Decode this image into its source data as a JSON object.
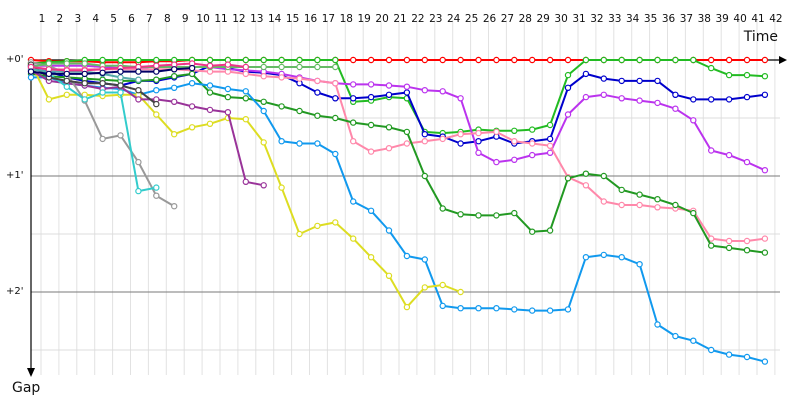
{
  "chart_data": {
    "type": "line",
    "xlabel": "Time",
    "ylabel": "Gap",
    "x": [
      1,
      2,
      3,
      4,
      5,
      6,
      7,
      8,
      9,
      10,
      11,
      12,
      13,
      14,
      15,
      16,
      17,
      18,
      19,
      20,
      21,
      22,
      23,
      24,
      25,
      26,
      27,
      28,
      29,
      30,
      31,
      32,
      33,
      34,
      35,
      36,
      37,
      38,
      39,
      40,
      41,
      42
    ],
    "x_tick_labels": [
      "1",
      "2",
      "3",
      "4",
      "5",
      "6",
      "7",
      "8",
      "9",
      "10",
      "11",
      "12",
      "13",
      "14",
      "15",
      "16",
      "17",
      "18",
      "19",
      "20",
      "21",
      "22",
      "23",
      "24",
      "25",
      "26",
      "27",
      "28",
      "29",
      "30",
      "31",
      "32",
      "33",
      "34",
      "35",
      "36",
      "37",
      "38",
      "39",
      "40",
      "41",
      "42"
    ],
    "y_ticks": [
      0,
      1,
      2
    ],
    "y_tick_labels": [
      "+0'",
      "+1'",
      "+2'"
    ],
    "ylim": [
      0,
      2.65
    ],
    "y_inverted": true,
    "grid": true,
    "series": [
      {
        "color": "#ff0000",
        "values": [
          0.0,
          0.01,
          0.01,
          0.01,
          0.02,
          0.02,
          0.02,
          0.01,
          0.01,
          0.0,
          0.0,
          0.0,
          0.0,
          0.0,
          0.0,
          0.0,
          0.0,
          0.0,
          0.0,
          0.0,
          0.0,
          0.0,
          0.0,
          0.0,
          0.0,
          0.0,
          0.0,
          0.0,
          0.0,
          0.0,
          0.0,
          0.0,
          0.0,
          0.0,
          0.0,
          0.0,
          0.0,
          0.0,
          0.0,
          0.0,
          0.0,
          0.0
        ]
      },
      {
        "color": "#22bb22",
        "values": [
          0.03,
          0.02,
          0.01,
          0.0,
          0.0,
          0.0,
          0.0,
          0.0,
          0.0,
          0.0,
          0.0,
          0.0,
          0.0,
          0.0,
          0.0,
          0.0,
          0.0,
          0.0,
          0.36,
          0.35,
          0.32,
          0.33,
          0.62,
          0.63,
          0.62,
          0.6,
          0.61,
          0.61,
          0.6,
          0.56,
          0.13,
          0.0,
          0.0,
          0.0,
          0.0,
          0.0,
          0.0,
          0.0,
          0.07,
          0.13,
          0.13,
          0.14
        ]
      },
      {
        "color": "#0000cc",
        "values": [
          0.05,
          0.1,
          0.15,
          0.18,
          0.2,
          0.22,
          0.18,
          0.18,
          0.15,
          0.12,
          0.05,
          0.07,
          0.1,
          0.11,
          0.13,
          0.2,
          0.28,
          0.33,
          0.33,
          0.32,
          0.3,
          0.28,
          0.64,
          0.66,
          0.72,
          0.7,
          0.66,
          0.72,
          0.7,
          0.68,
          0.24,
          0.12,
          0.16,
          0.18,
          0.18,
          0.18,
          0.3,
          0.34,
          0.34,
          0.34,
          0.32,
          0.3
        ]
      },
      {
        "color": "#bb33ee",
        "values": [
          0.05,
          0.05,
          0.05,
          0.05,
          0.06,
          0.07,
          0.08,
          0.05,
          0.06,
          0.06,
          0.06,
          0.08,
          0.09,
          0.1,
          0.12,
          0.15,
          0.18,
          0.2,
          0.21,
          0.21,
          0.22,
          0.23,
          0.26,
          0.27,
          0.33,
          0.8,
          0.88,
          0.86,
          0.82,
          0.8,
          0.47,
          0.32,
          0.3,
          0.33,
          0.35,
          0.37,
          0.42,
          0.52,
          0.78,
          0.82,
          0.88,
          0.95
        ]
      },
      {
        "color": "#ff88aa",
        "values": [
          0.07,
          0.08,
          0.08,
          0.08,
          0.08,
          0.08,
          0.08,
          0.08,
          0.08,
          0.09,
          0.1,
          0.1,
          0.12,
          0.14,
          0.15,
          0.16,
          0.18,
          0.2,
          0.7,
          0.79,
          0.76,
          0.72,
          0.7,
          0.68,
          0.64,
          0.63,
          0.62,
          0.7,
          0.72,
          0.74,
          1.01,
          1.08,
          1.22,
          1.25,
          1.25,
          1.27,
          1.28,
          1.3,
          1.54,
          1.56,
          1.56,
          1.54
        ]
      },
      {
        "color": "#229922",
        "values": [
          0.12,
          0.14,
          0.15,
          0.16,
          0.17,
          0.18,
          0.18,
          0.17,
          0.14,
          0.12,
          0.28,
          0.32,
          0.33,
          0.36,
          0.4,
          0.44,
          0.48,
          0.5,
          0.54,
          0.56,
          0.58,
          0.62,
          1.0,
          1.28,
          1.33,
          1.34,
          1.34,
          1.32,
          1.48,
          1.47,
          1.02,
          0.98,
          1.0,
          1.12,
          1.16,
          1.2,
          1.25,
          1.32,
          1.6,
          1.62,
          1.64,
          1.66
        ]
      },
      {
        "color": "#1199ee",
        "values": [
          0.15,
          0.15,
          0.2,
          0.22,
          0.24,
          0.25,
          0.3,
          0.26,
          0.24,
          0.2,
          0.22,
          0.25,
          0.27,
          0.44,
          0.7,
          0.72,
          0.72,
          0.81,
          1.22,
          1.3,
          1.47,
          1.69,
          1.72,
          2.12,
          2.14,
          2.14,
          2.14,
          2.15,
          2.16,
          2.16,
          2.15,
          1.7,
          1.68,
          1.7,
          1.76,
          2.28,
          2.38,
          2.42,
          2.5,
          2.54,
          2.56,
          2.6
        ]
      },
      {
        "color": "#dddd22",
        "values": [
          0.03,
          0.34,
          0.3,
          0.3,
          0.31,
          0.3,
          0.3,
          0.47,
          0.64,
          0.58,
          0.55,
          0.5,
          0.51,
          0.71,
          1.1,
          1.5,
          1.43,
          1.4,
          1.54,
          1.7,
          1.86,
          2.13,
          1.96,
          1.94,
          2.0,
          null,
          null,
          null,
          null,
          null,
          null,
          null,
          null,
          null,
          null,
          null,
          null,
          null,
          null,
          null,
          null,
          null
        ]
      },
      {
        "color": "#993399",
        "values": [
          0.09,
          0.18,
          0.2,
          0.22,
          0.25,
          0.23,
          0.34,
          0.34,
          0.36,
          0.4,
          0.43,
          0.45,
          1.05,
          1.08,
          null,
          null,
          null,
          null,
          null,
          null,
          null,
          null,
          null,
          null,
          null,
          null,
          null,
          null,
          null,
          null,
          null,
          null,
          null,
          null,
          null,
          null,
          null,
          null,
          null,
          null,
          null,
          null
        ]
      },
      {
        "color": "#999999",
        "values": [
          0.02,
          0.05,
          0.12,
          0.35,
          0.68,
          0.65,
          0.88,
          1.17,
          1.26,
          null,
          null,
          null,
          null,
          null,
          null,
          null,
          null,
          null,
          null,
          null,
          null,
          null,
          null,
          null,
          null,
          null,
          null,
          null,
          null,
          null,
          null,
          null,
          null,
          null,
          null,
          null,
          null,
          null,
          null,
          null,
          null,
          null
        ]
      },
      {
        "color": "#33cccc",
        "values": [
          0.05,
          0.12,
          0.23,
          0.34,
          0.28,
          0.28,
          1.13,
          1.1,
          null,
          null,
          null,
          null,
          null,
          null,
          null,
          null,
          null,
          null,
          null,
          null,
          null,
          null,
          null,
          null,
          null,
          null,
          null,
          null,
          null,
          null,
          null,
          null,
          null,
          null,
          null,
          null,
          null,
          null,
          null,
          null,
          null,
          null
        ]
      },
      {
        "color": "#444444",
        "values": [
          0.04,
          0.15,
          0.18,
          0.2,
          0.2,
          0.22,
          0.26,
          0.38,
          null,
          null,
          null,
          null,
          null,
          null,
          null,
          null,
          null,
          null,
          null,
          null,
          null,
          null,
          null,
          null,
          null,
          null,
          null,
          null,
          null,
          null,
          null,
          null,
          null,
          null,
          null,
          null,
          null,
          null,
          null,
          null,
          null,
          null
        ]
      },
      {
        "color": "#66bb66",
        "values": [
          0.06,
          0.03,
          0.03,
          0.03,
          0.05,
          0.05,
          0.06,
          0.06,
          0.06,
          0.06,
          0.06,
          0.06,
          0.06,
          0.06,
          0.06,
          0.06,
          0.06,
          0.06,
          null,
          null,
          null,
          null,
          null,
          null,
          null,
          null,
          null,
          null,
          null,
          null,
          null,
          null,
          null,
          null,
          null,
          null,
          null,
          null,
          null,
          null,
          null,
          null
        ]
      },
      {
        "color": "#55aaaa",
        "values": [
          0.08,
          0.1,
          0.1,
          0.1,
          0.12,
          0.15,
          0.17,
          null,
          null,
          null,
          null,
          null,
          null,
          null,
          null,
          null,
          null,
          null,
          null,
          null,
          null,
          null,
          null,
          null,
          null,
          null,
          null,
          null,
          null,
          null,
          null,
          null,
          null,
          null,
          null,
          null,
          null,
          null,
          null,
          null,
          null,
          null
        ]
      },
      {
        "color": "#ee3388",
        "values": [
          0.06,
          0.08,
          0.09,
          0.09,
          0.08,
          0.07,
          0.06,
          0.05,
          0.04,
          0.03,
          0.05,
          0.04,
          0.06,
          null,
          null,
          null,
          null,
          null,
          null,
          null,
          null,
          null,
          null,
          null,
          null,
          null,
          null,
          null,
          null,
          null,
          null,
          null,
          null,
          null,
          null,
          null,
          null,
          null,
          null,
          null,
          null,
          null
        ]
      },
      {
        "color": "#000066",
        "values": [
          0.1,
          0.12,
          0.12,
          0.12,
          0.11,
          0.1,
          0.1,
          0.1,
          0.08,
          0.07,
          null,
          null,
          null,
          null,
          null,
          null,
          null,
          null,
          null,
          null,
          null,
          null,
          null,
          null,
          null,
          null,
          null,
          null,
          null,
          null,
          null,
          null,
          null,
          null,
          null,
          null,
          null,
          null,
          null,
          null,
          null,
          null
        ]
      }
    ]
  }
}
